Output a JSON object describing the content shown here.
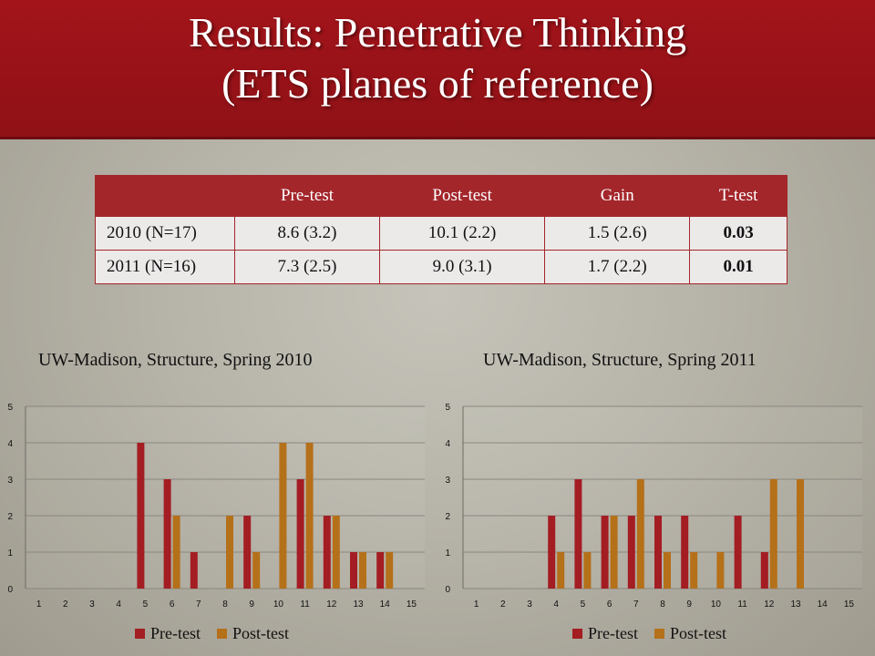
{
  "slide": {
    "title_line1": "Results: Penetrative Thinking",
    "title_line2": "(ETS planes of reference)"
  },
  "table": {
    "headers": [
      "",
      "Pre-test",
      "Post-test",
      "Gain",
      "T-test"
    ],
    "rows": [
      [
        "2010 (N=17)",
        "8.6 (3.2)",
        "10.1 (2.2)",
        "1.5 (2.6)",
        "0.03"
      ],
      [
        "2011 (N=16)",
        "7.3 (2.5)",
        "9.0 (3.1)",
        "1.7 (2.2)",
        "0.01"
      ]
    ]
  },
  "colors": {
    "pre": "#a31d22",
    "post": "#b5701a"
  },
  "chart_data": [
    {
      "type": "bar",
      "title": "UW-Madison, Structure, Spring 2010",
      "categories": [
        "1",
        "2",
        "3",
        "4",
        "5",
        "6",
        "7",
        "8",
        "9",
        "10",
        "11",
        "12",
        "13",
        "14",
        "15"
      ],
      "series": [
        {
          "name": "Pre-test",
          "values": [
            0,
            0,
            0,
            0,
            4,
            3,
            1,
            0,
            2,
            0,
            3,
            2,
            1,
            1,
            0
          ]
        },
        {
          "name": "Post-test",
          "values": [
            0,
            0,
            0,
            0,
            0,
            2,
            0,
            2,
            1,
            4,
            4,
            2,
            1,
            1,
            0
          ]
        }
      ],
      "yticks": [
        "0",
        "1",
        "2",
        "3",
        "4",
        "5"
      ],
      "ylim": [
        0,
        5
      ],
      "grid": true,
      "legend": "bottom"
    },
    {
      "type": "bar",
      "title": "UW-Madison, Structure, Spring 2011",
      "categories": [
        "1",
        "2",
        "3",
        "4",
        "5",
        "6",
        "7",
        "8",
        "9",
        "10",
        "11",
        "12",
        "13",
        "14",
        "15"
      ],
      "series": [
        {
          "name": "Pre-test",
          "values": [
            0,
            0,
            0,
            2,
            3,
            2,
            2,
            2,
            2,
            0,
            2,
            1,
            0,
            0,
            0
          ]
        },
        {
          "name": "Post-test",
          "values": [
            0,
            0,
            0,
            1,
            1,
            2,
            3,
            1,
            1,
            1,
            0,
            3,
            3,
            0,
            0
          ]
        }
      ],
      "yticks": [
        "0",
        "1",
        "2",
        "3",
        "4",
        "5"
      ],
      "ylim": [
        0,
        5
      ],
      "grid": true,
      "legend": "bottom"
    }
  ]
}
